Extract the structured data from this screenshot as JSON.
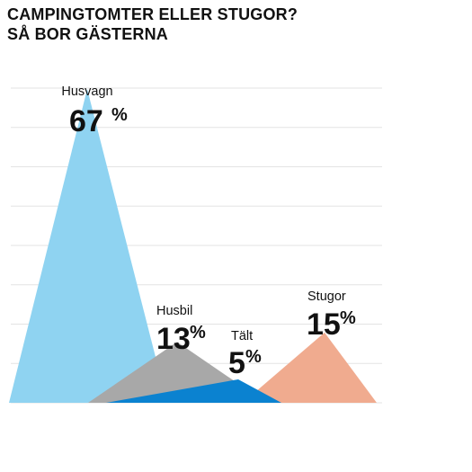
{
  "chart_data": {
    "type": "area",
    "title": "CAMPINGTOMTER ELLER STUGOR?",
    "subtitle": "SÅ BOR GÄSTERNA",
    "grid": true,
    "ylim": [
      0,
      70
    ],
    "series": [
      {
        "name": "Husvagn",
        "value": 67,
        "label": "67",
        "color": "#8FD3F1"
      },
      {
        "name": "Husbil",
        "value": 13,
        "label": "13",
        "color": "#A8A8A8"
      },
      {
        "name": "Tält",
        "value": 5,
        "label": "5",
        "color": "#0B82D0"
      },
      {
        "name": "Stugor",
        "value": 15,
        "label": "15",
        "color": "#F0AB8F"
      }
    ],
    "unit": "%"
  }
}
